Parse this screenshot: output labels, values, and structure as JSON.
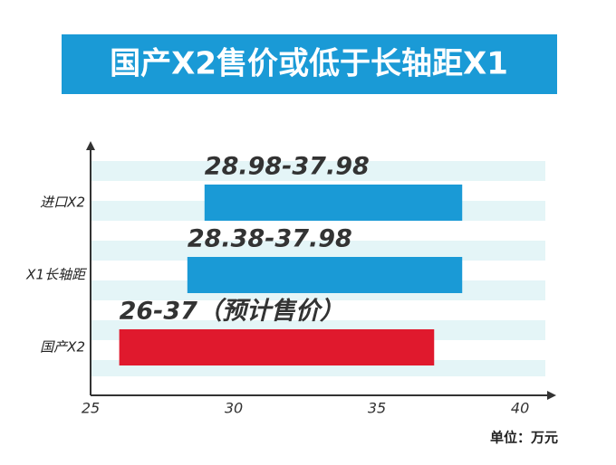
{
  "chart_data": {
    "type": "range-bar",
    "title": "国产X2售价或低于长轴距X1",
    "categories": [
      "进口X2",
      "X1长轴距",
      "国产X2"
    ],
    "low": [
      28.98,
      28.38,
      26
    ],
    "high": [
      37.98,
      37.98,
      37
    ],
    "value_labels": [
      "28.98-37.98",
      "28.38-37.98",
      "26-37（预计售价）"
    ],
    "colors": [
      "#1a9ad6",
      "#1a9ad6",
      "#e0192d"
    ],
    "xlim": [
      25,
      41.2
    ],
    "xticks": [
      25,
      30,
      35,
      40
    ],
    "unit_label": "单位：万元"
  }
}
